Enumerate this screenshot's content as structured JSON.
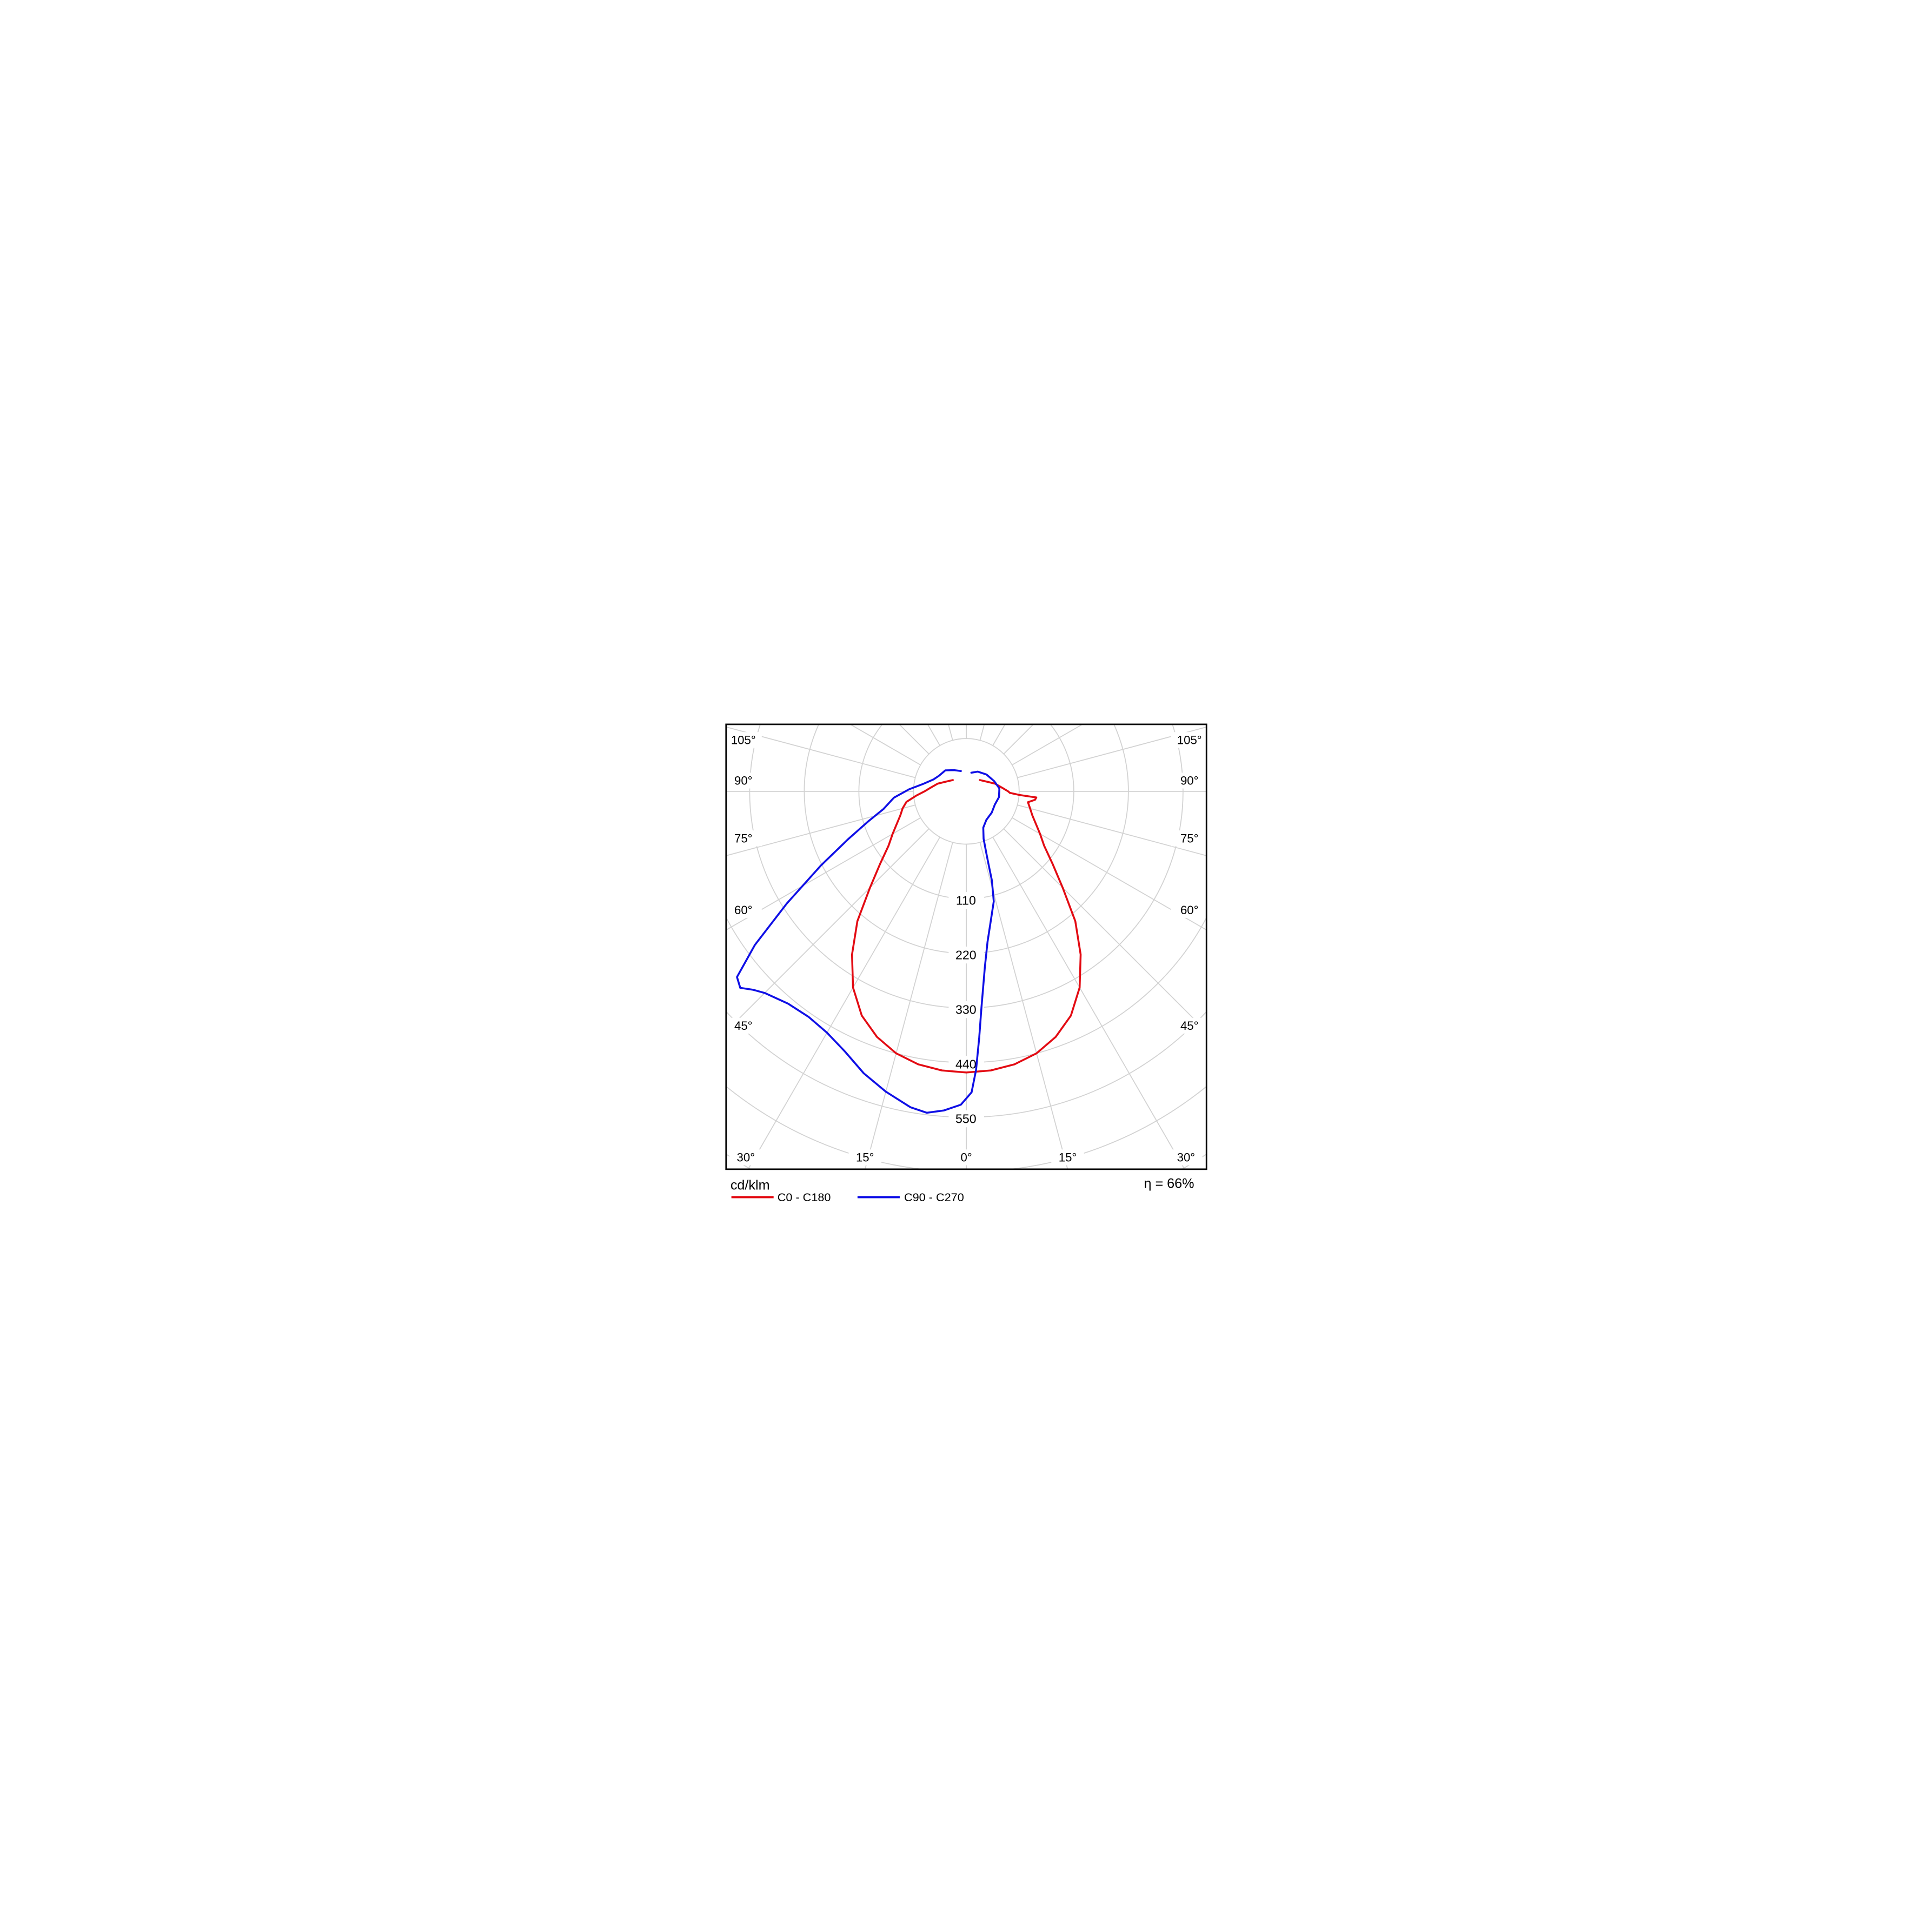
{
  "chart_data": {
    "type": "polar_photometric_curve",
    "units_label": "cd/klm",
    "efficiency_label": "η = 66%",
    "radial_ticks": [
      110,
      220,
      330,
      440,
      550
    ],
    "radial_tick_step": 110,
    "radial_axis_max_visible": 770,
    "angle_tick_step_deg": 15,
    "side_angle_labels": [
      "105°",
      "90°",
      "75°",
      "60°",
      "45°"
    ],
    "bottom_angle_labels": [
      "30°",
      "15°",
      "0°",
      "15°",
      "30°"
    ],
    "grid": {
      "color": "#d2d2d2",
      "frame_color": "#000000",
      "background": "#ffffff"
    },
    "legend": [
      {
        "name": "C0 - C180",
        "color": "#e30b13"
      },
      {
        "name": "C90 - C270",
        "color": "#0f0fe6"
      }
    ],
    "series": [
      {
        "name": "C0 - C180",
        "color": "#e30b13",
        "points_gamma_value": [
          [
            -130,
            1
          ],
          [
            -115,
            4
          ],
          [
            -105,
            8
          ],
          [
            -95,
            12
          ],
          [
            -90,
            15
          ],
          [
            -85,
            20
          ],
          [
            -80,
            26
          ],
          [
            -75,
            29
          ],
          [
            -70,
            35
          ],
          [
            -65,
            48
          ],
          [
            -60,
            65
          ],
          [
            -55,
            85
          ],
          [
            -50,
            120
          ],
          [
            -45,
            168
          ],
          [
            -40,
            235
          ],
          [
            -35,
            295
          ],
          [
            -30,
            350
          ],
          [
            -25,
            392
          ],
          [
            -20,
            420
          ],
          [
            -15,
            440
          ],
          [
            -10,
            452
          ],
          [
            -5,
            458
          ],
          [
            0,
            460
          ],
          [
            5,
            458
          ],
          [
            10,
            452
          ],
          [
            15,
            440
          ],
          [
            20,
            420
          ],
          [
            25,
            392
          ],
          [
            30,
            350
          ],
          [
            35,
            295
          ],
          [
            40,
            235
          ],
          [
            45,
            168
          ],
          [
            50,
            120
          ],
          [
            55,
            85
          ],
          [
            60,
            65
          ],
          [
            65,
            48
          ],
          [
            70,
            35
          ],
          [
            75,
            29
          ],
          [
            80,
            27
          ],
          [
            83,
            33
          ],
          [
            85,
            35
          ],
          [
            86,
            22
          ],
          [
            88,
            16
          ],
          [
            90,
            15
          ],
          [
            95,
            12
          ],
          [
            105,
            8
          ],
          [
            115,
            4
          ],
          [
            130,
            1
          ]
        ]
      },
      {
        "name": "C90 - C270",
        "color": "#0f0fe6",
        "points_gamma_value": [
          [
            -165,
            3
          ],
          [
            -150,
            5
          ],
          [
            -135,
            8
          ],
          [
            -120,
            9
          ],
          [
            -110,
            11
          ],
          [
            -100,
            16
          ],
          [
            -92,
            24
          ],
          [
            -85,
            40
          ],
          [
            -78,
            64
          ],
          [
            -73,
            100
          ],
          [
            -68,
            150
          ],
          [
            -63,
            222
          ],
          [
            -58,
            320
          ],
          [
            -54,
            420
          ],
          [
            -51,
            488
          ],
          [
            -49,
            497
          ],
          [
            -47,
            480
          ],
          [
            -45,
            468
          ],
          [
            -40,
            452
          ],
          [
            -35,
            448
          ],
          [
            -30,
            455
          ],
          [
            -25,
            472
          ],
          [
            -20,
            498
          ],
          [
            -15,
            520
          ],
          [
            -10,
            540
          ],
          [
            -7,
            546
          ],
          [
            -4,
            538
          ],
          [
            -1,
            525
          ],
          [
            1,
            500
          ],
          [
            2,
            455
          ],
          [
            3,
            390
          ],
          [
            4,
            330
          ],
          [
            6,
            250
          ],
          [
            8,
            200
          ],
          [
            11,
            155
          ],
          [
            14,
            122
          ],
          [
            16,
            80
          ],
          [
            17,
            45
          ],
          [
            18,
            28
          ],
          [
            20,
            20
          ],
          [
            25,
            14
          ],
          [
            35,
            11
          ],
          [
            50,
            10
          ],
          [
            65,
            9
          ],
          [
            80,
            10
          ],
          [
            95,
            10
          ],
          [
            110,
            8
          ],
          [
            130,
            6
          ],
          [
            150,
            4
          ],
          [
            165,
            2
          ]
        ]
      }
    ],
    "notes": "Luminous intensity distribution polar diagram. 0° = nadir (down), angles every 15° up to 105° on both sides. Radial rings every 110 cd/klm."
  }
}
